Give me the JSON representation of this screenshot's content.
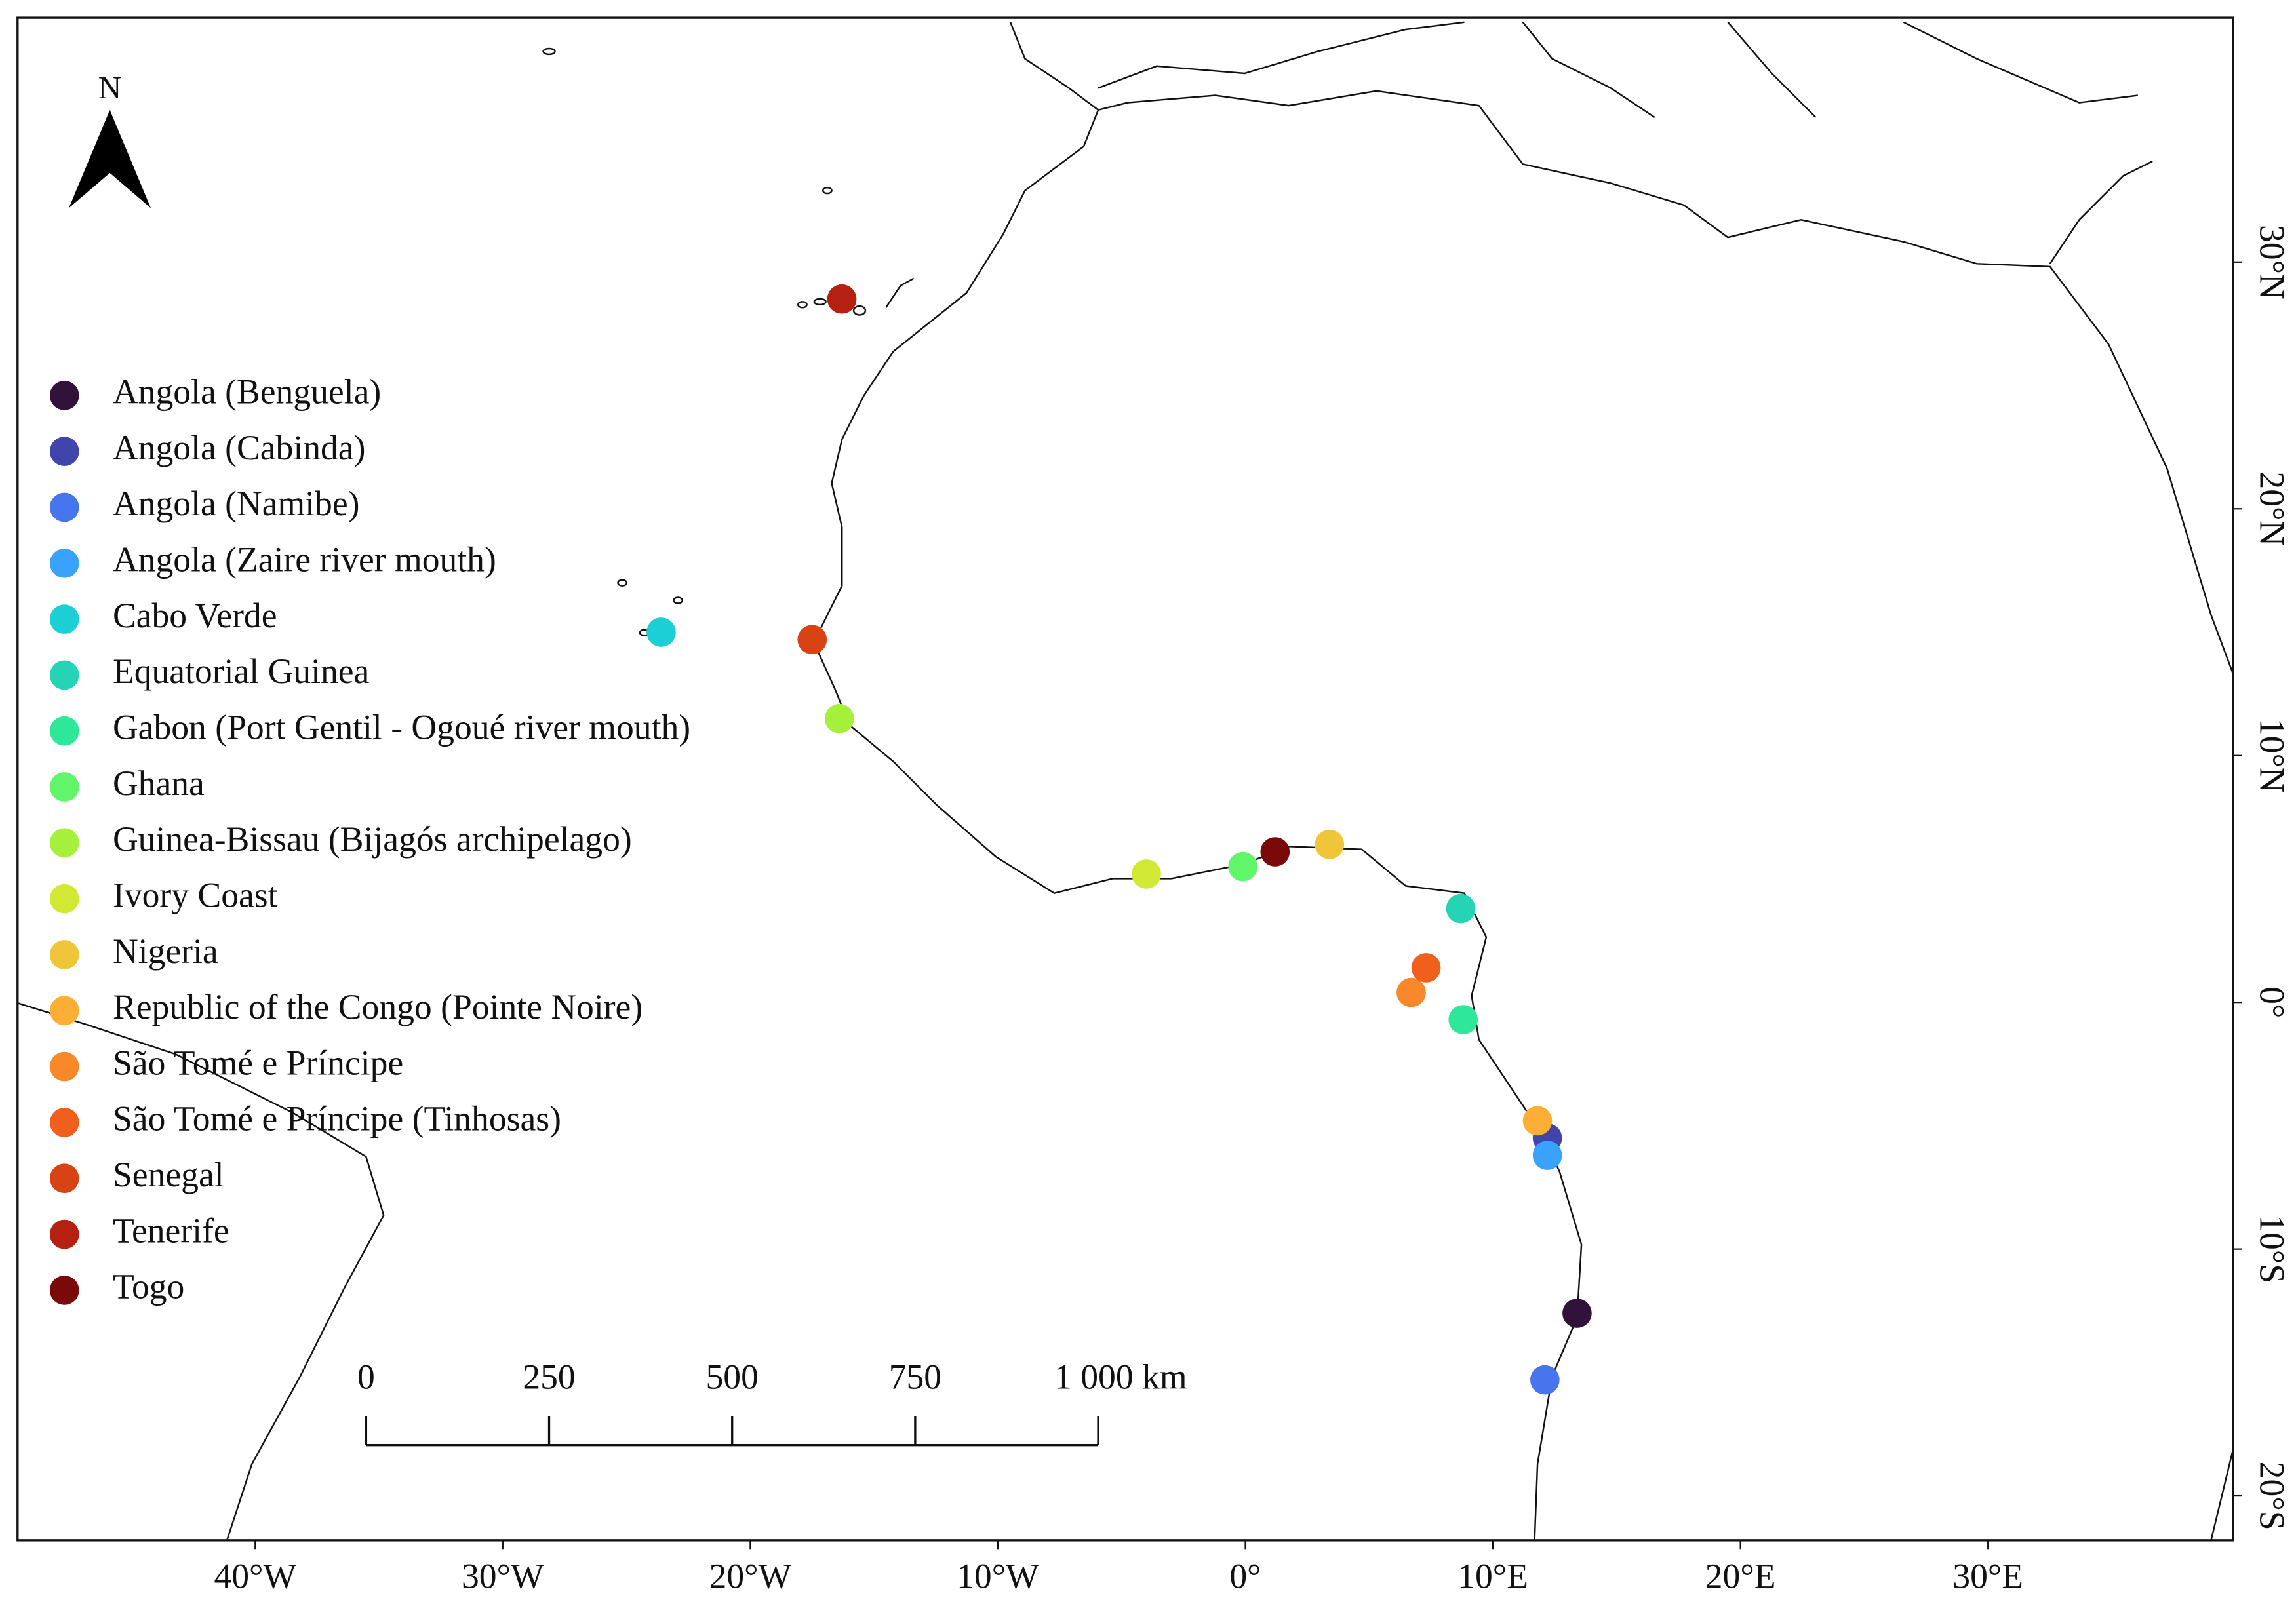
{
  "chart_data": {
    "type": "scatter",
    "north_label": "N",
    "xlim": [
      -49.6,
      39.9
    ],
    "ylim": [
      -21.8,
      39.9
    ],
    "xticks": [
      {
        "value": -40,
        "label": "40°W"
      },
      {
        "value": -30,
        "label": "30°W"
      },
      {
        "value": -20,
        "label": "20°W"
      },
      {
        "value": -10,
        "label": "10°W"
      },
      {
        "value": 0,
        "label": "0°"
      },
      {
        "value": 10,
        "label": "10°E"
      },
      {
        "value": 20,
        "label": "20°E"
      },
      {
        "value": 30,
        "label": "30°E"
      }
    ],
    "yticks": [
      {
        "value": -20,
        "label": "20°S"
      },
      {
        "value": -10,
        "label": "10°S"
      },
      {
        "value": 0,
        "label": "0°"
      },
      {
        "value": 10,
        "label": "10°N"
      },
      {
        "value": 20,
        "label": "20°N"
      },
      {
        "value": 30,
        "label": "30°N"
      }
    ],
    "scale_bar": {
      "ticks": [
        0,
        250,
        500,
        750,
        {
          "value": 1000,
          "label": "1 000 km"
        }
      ]
    },
    "series": [
      {
        "name": "Angola (Benguela)",
        "color": "#30123b",
        "x": [
          13.4
        ],
        "values": [
          -12.6
        ]
      },
      {
        "name": "Angola (Cabinda)",
        "color": "#4145ab",
        "x": [
          12.2
        ],
        "values": [
          -5.5
        ]
      },
      {
        "name": "Angola (Namibe)",
        "color": "#4675ed",
        "x": [
          12.1
        ],
        "values": [
          -15.3
        ]
      },
      {
        "name": "Angola (Zaire river mouth)",
        "color": "#39a2fc",
        "x": [
          12.2
        ],
        "values": [
          -6.2
        ]
      },
      {
        "name": "Cabo Verde",
        "color": "#1bcfd4",
        "x": [
          -23.6
        ],
        "values": [
          15.0
        ]
      },
      {
        "name": "Equatorial Guinea",
        "color": "#24d4b4",
        "x": [
          8.7
        ],
        "values": [
          3.8
        ]
      },
      {
        "name": "Gabon (Port Gentil - Ogoué river mouth)",
        "color": "#2ee89a",
        "x": [
          8.8
        ],
        "values": [
          -0.7
        ]
      },
      {
        "name": "Ghana",
        "color": "#61f56a",
        "x": [
          -0.1
        ],
        "values": [
          5.5
        ]
      },
      {
        "name": "Guinea-Bissau (Bijagós archipelago)",
        "color": "#a4f03b",
        "x": [
          -16.4
        ],
        "values": [
          11.5
        ]
      },
      {
        "name": "Ivory Coast",
        "color": "#d1e834",
        "x": [
          -4.0
        ],
        "values": [
          5.2
        ]
      },
      {
        "name": "Nigeria",
        "color": "#efc63a",
        "x": [
          3.4
        ],
        "values": [
          6.4
        ]
      },
      {
        "name": "Republic of the Congo (Pointe Noire)",
        "color": "#fdae35",
        "x": [
          11.8
        ],
        "values": [
          -4.8
        ]
      },
      {
        "name": "São Tomé e Príncipe",
        "color": "#f9882a",
        "x": [
          6.7
        ],
        "values": [
          0.4
        ]
      },
      {
        "name": "São Tomé e Príncipe (Tinhosas)",
        "color": "#f0601c",
        "x": [
          7.3
        ],
        "values": [
          1.4
        ]
      },
      {
        "name": "Senegal",
        "color": "#d84315",
        "x": [
          -17.5
        ],
        "values": [
          14.7
        ]
      },
      {
        "name": "Tenerife",
        "color": "#b52010",
        "x": [
          -16.3
        ],
        "values": [
          28.5
        ]
      },
      {
        "name": "Togo",
        "color": "#7a0a0a",
        "x": [
          1.2
        ],
        "values": [
          6.1
        ]
      }
    ]
  }
}
